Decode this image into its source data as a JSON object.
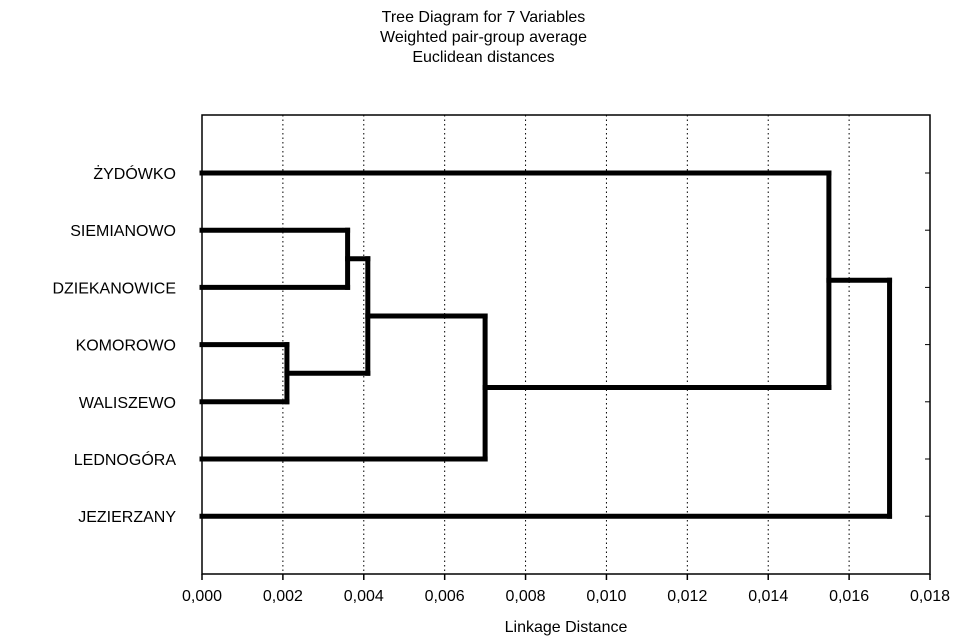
{
  "chart_data": {
    "type": "dendrogram",
    "title": "Tree Diagram for 7 Variables",
    "subtitle_1": "Weighted pair-group average",
    "subtitle_2": "Euclidean distances",
    "xlabel": "Linkage Distance",
    "xlim": [
      0,
      0.018
    ],
    "xticks": [
      0,
      0.002,
      0.004,
      0.006,
      0.008,
      0.01,
      0.012,
      0.014,
      0.016,
      0.018
    ],
    "xtick_labels": [
      "0,000",
      "0,002",
      "0,004",
      "0,006",
      "0,008",
      "0,010",
      "0,012",
      "0,014",
      "0,016",
      "0,018"
    ],
    "grid": "vertical-dotted",
    "leaves": [
      "ŻYDÓWKO",
      "SIEMIANOWO",
      "DZIEKANOWICE",
      "KOMOROWO",
      "WALISZEWO",
      "LEDNOGÓRA",
      "JEZIERZANY"
    ],
    "merges": [
      {
        "a": "KOMOROWO",
        "b": "WALISZEWO",
        "distance": 0.0021
      },
      {
        "a": "SIEMIANOWO",
        "b": "DZIEKANOWICE",
        "distance": 0.0036
      },
      {
        "a": "SIEMIANOWO+DZIEKANOWICE",
        "b": "KOMOROWO+WALISZEWO",
        "distance": 0.0041
      },
      {
        "a": "SIEMIANOWO+DZIEKANOWICE+KOMOROWO+WALISZEWO",
        "b": "LEDNOGÓRA",
        "distance": 0.007
      },
      {
        "a": "ŻYDÓWKO",
        "b": "SIEMIANOWO+DZIEKANOWICE+KOMOROWO+WALISZEWO+LEDNOGÓRA",
        "distance": 0.0155
      },
      {
        "a": "ŻYDÓWKO+SIEMIANOWO+DZIEKANOWICE+KOMOROWO+WALISZEWO+LEDNOGÓRA",
        "b": "JEZIERZANY",
        "distance": 0.017
      }
    ]
  }
}
